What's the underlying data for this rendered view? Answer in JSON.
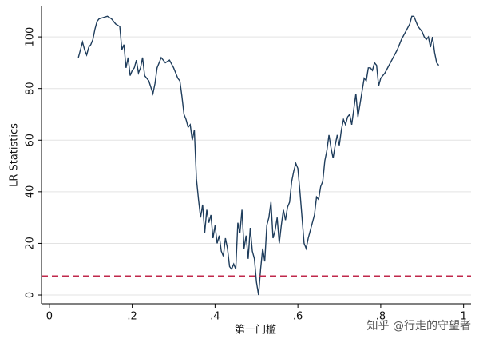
{
  "chart_data": {
    "type": "line",
    "x_label": "第一门槛",
    "y_label": "LR Statistics",
    "watermark": "知乎 @行走的守望者",
    "xlim": [
      -0.019,
      1.018
    ],
    "ylim": [
      -3.4,
      111.8
    ],
    "xticks": [
      {
        "value": 0,
        "label": "0"
      },
      {
        "value": 0.2,
        "label": ".2"
      },
      {
        "value": 0.4,
        "label": ".4"
      },
      {
        "value": 0.6,
        "label": ".6"
      },
      {
        "value": 0.8,
        "label": ".8"
      },
      {
        "value": 1,
        "label": "1"
      }
    ],
    "yticks": [
      0,
      20,
      40,
      60,
      80,
      100
    ],
    "grid": true,
    "reference_line": {
      "value": 7.35,
      "color": "#c0284b"
    },
    "series": [
      {
        "color": "#1f3d5c",
        "x": [
          0.07,
          0.075,
          0.08,
          0.085,
          0.09,
          0.095,
          0.1,
          0.105,
          0.11,
          0.115,
          0.12,
          0.13,
          0.14,
          0.15,
          0.16,
          0.17,
          0.175,
          0.18,
          0.185,
          0.19,
          0.195,
          0.2,
          0.205,
          0.21,
          0.215,
          0.22,
          0.225,
          0.23,
          0.24,
          0.25,
          0.255,
          0.26,
          0.27,
          0.28,
          0.29,
          0.3,
          0.31,
          0.315,
          0.32,
          0.325,
          0.33,
          0.335,
          0.34,
          0.345,
          0.35,
          0.355,
          0.36,
          0.365,
          0.37,
          0.375,
          0.38,
          0.385,
          0.39,
          0.395,
          0.4,
          0.405,
          0.41,
          0.415,
          0.42,
          0.425,
          0.43,
          0.435,
          0.44,
          0.445,
          0.45,
          0.455,
          0.46,
          0.465,
          0.47,
          0.475,
          0.48,
          0.485,
          0.49,
          0.495,
          0.5,
          0.505,
          0.51,
          0.515,
          0.52,
          0.525,
          0.53,
          0.535,
          0.54,
          0.545,
          0.55,
          0.555,
          0.56,
          0.565,
          0.57,
          0.575,
          0.58,
          0.585,
          0.59,
          0.595,
          0.6,
          0.605,
          0.61,
          0.615,
          0.62,
          0.625,
          0.63,
          0.635,
          0.64,
          0.645,
          0.65,
          0.655,
          0.66,
          0.665,
          0.67,
          0.675,
          0.68,
          0.685,
          0.69,
          0.695,
          0.7,
          0.705,
          0.71,
          0.715,
          0.72,
          0.725,
          0.73,
          0.735,
          0.74,
          0.745,
          0.75,
          0.755,
          0.76,
          0.765,
          0.77,
          0.775,
          0.78,
          0.785,
          0.79,
          0.795,
          0.8,
          0.81,
          0.82,
          0.83,
          0.84,
          0.85,
          0.86,
          0.87,
          0.875,
          0.88,
          0.885,
          0.89,
          0.9,
          0.905,
          0.91,
          0.915,
          0.92,
          0.925,
          0.93,
          0.935,
          0.94
        ],
        "values": [
          92,
          95,
          98,
          95,
          93,
          96,
          97,
          99,
          103,
          106,
          107,
          107.5,
          108,
          107,
          105,
          104,
          95,
          97,
          88,
          92,
          85,
          87,
          88,
          91,
          86,
          88,
          92,
          85,
          83,
          78,
          82,
          88,
          92,
          90,
          91,
          88,
          84,
          83,
          77,
          70,
          68,
          65,
          66,
          60,
          64,
          45,
          37,
          30,
          35,
          24,
          33,
          28,
          31,
          22,
          27,
          20,
          23,
          17,
          15,
          22,
          18,
          11,
          10,
          12,
          10,
          28,
          24,
          33,
          18,
          23,
          14,
          26,
          17,
          14,
          5,
          0,
          10,
          18,
          13,
          27,
          30,
          36,
          22,
          25,
          30,
          20,
          27,
          33,
          29,
          34,
          36,
          44,
          48,
          51,
          49,
          40,
          30,
          20,
          18,
          22,
          25,
          28,
          31,
          38,
          37,
          42,
          44,
          52,
          56,
          62,
          57,
          53,
          58,
          62,
          58,
          64,
          68,
          66,
          69,
          70,
          66,
          72,
          78,
          69,
          74,
          79,
          84,
          83,
          88,
          88,
          87,
          90,
          89,
          81,
          84,
          86,
          89,
          92,
          95,
          99,
          102,
          105,
          108,
          108,
          106,
          104,
          102,
          100,
          99,
          100,
          96,
          100,
          94,
          90,
          89
        ]
      }
    ]
  }
}
